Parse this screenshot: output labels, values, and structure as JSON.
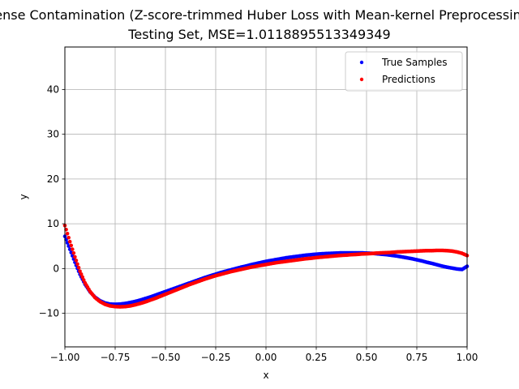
{
  "chart_data": {
    "type": "scatter",
    "title": "Dense Contamination (Z-score-trimmed Huber Loss with Mean-kernel Preprocessing)",
    "subtitle": "Testing Set, MSE=1.0118895513349349",
    "xlabel": "x",
    "ylabel": "y",
    "xlim": [
      -1.0,
      1.0
    ],
    "ylim": [
      -17.5,
      49.5
    ],
    "xticks": [
      -1.0,
      -0.75,
      -0.5,
      -0.25,
      0.0,
      0.25,
      0.5,
      0.75,
      1.0
    ],
    "xtick_labels": [
      "−1.00",
      "−0.75",
      "−0.50",
      "−0.25",
      "0.00",
      "0.25",
      "0.50",
      "0.75",
      "1.00"
    ],
    "yticks": [
      -10,
      0,
      10,
      20,
      30,
      40
    ],
    "ytick_labels": [
      "−10",
      "0",
      "10",
      "20",
      "30",
      "40"
    ],
    "grid": true,
    "legend_position": "upper right",
    "series": [
      {
        "name": "True Samples",
        "color": "#0000ff",
        "x": [
          -1.0,
          -0.975,
          -0.95,
          -0.925,
          -0.9,
          -0.875,
          -0.85,
          -0.825,
          -0.8,
          -0.775,
          -0.75,
          -0.725,
          -0.7,
          -0.675,
          -0.65,
          -0.625,
          -0.6,
          -0.575,
          -0.55,
          -0.525,
          -0.5,
          -0.475,
          -0.45,
          -0.425,
          -0.4,
          -0.375,
          -0.35,
          -0.325,
          -0.3,
          -0.275,
          -0.25,
          -0.225,
          -0.2,
          -0.175,
          -0.15,
          -0.125,
          -0.1,
          -0.075,
          -0.05,
          -0.025,
          0.0,
          0.025,
          0.05,
          0.075,
          0.1,
          0.125,
          0.15,
          0.175,
          0.2,
          0.225,
          0.25,
          0.275,
          0.3,
          0.325,
          0.35,
          0.375,
          0.4,
          0.425,
          0.45,
          0.475,
          0.5,
          0.525,
          0.55,
          0.575,
          0.6,
          0.625,
          0.65,
          0.675,
          0.7,
          0.725,
          0.75,
          0.775,
          0.8,
          0.825,
          0.85,
          0.875,
          0.9,
          0.925,
          0.95,
          0.975,
          1.0
        ],
        "y": [
          7.2,
          4.3,
          1.4,
          -1.3,
          -3.5,
          -5.2,
          -6.4,
          -7.2,
          -7.7,
          -7.95,
          -8.0,
          -7.95,
          -7.8,
          -7.6,
          -7.35,
          -7.05,
          -6.7,
          -6.35,
          -5.95,
          -5.55,
          -5.15,
          -4.75,
          -4.35,
          -3.95,
          -3.55,
          -3.15,
          -2.75,
          -2.35,
          -1.95,
          -1.6,
          -1.25,
          -0.9,
          -0.6,
          -0.3,
          0.0,
          0.3,
          0.55,
          0.85,
          1.1,
          1.35,
          1.6,
          1.8,
          2.0,
          2.2,
          2.4,
          2.55,
          2.7,
          2.85,
          3.0,
          3.1,
          3.2,
          3.3,
          3.35,
          3.4,
          3.45,
          3.5,
          3.5,
          3.5,
          3.5,
          3.5,
          3.45,
          3.4,
          3.3,
          3.2,
          3.1,
          2.95,
          2.8,
          2.6,
          2.4,
          2.2,
          1.95,
          1.7,
          1.4,
          1.15,
          0.85,
          0.55,
          0.3,
          0.1,
          -0.1,
          -0.2,
          0.5
        ]
      },
      {
        "name": "Predictions",
        "color": "#ff0000",
        "x": [
          -1.0,
          -0.975,
          -0.95,
          -0.925,
          -0.9,
          -0.875,
          -0.85,
          -0.825,
          -0.8,
          -0.775,
          -0.75,
          -0.725,
          -0.7,
          -0.675,
          -0.65,
          -0.625,
          -0.6,
          -0.575,
          -0.55,
          -0.525,
          -0.5,
          -0.475,
          -0.45,
          -0.425,
          -0.4,
          -0.375,
          -0.35,
          -0.325,
          -0.3,
          -0.275,
          -0.25,
          -0.225,
          -0.2,
          -0.175,
          -0.15,
          -0.125,
          -0.1,
          -0.075,
          -0.05,
          -0.025,
          0.0,
          0.025,
          0.05,
          0.075,
          0.1,
          0.125,
          0.15,
          0.175,
          0.2,
          0.225,
          0.25,
          0.275,
          0.3,
          0.325,
          0.35,
          0.375,
          0.4,
          0.425,
          0.45,
          0.475,
          0.5,
          0.525,
          0.55,
          0.575,
          0.6,
          0.625,
          0.65,
          0.675,
          0.7,
          0.725,
          0.75,
          0.775,
          0.8,
          0.825,
          0.85,
          0.875,
          0.9,
          0.925,
          0.95,
          0.975,
          1.0
        ],
        "y": [
          9.6,
          6.0,
          2.6,
          -0.6,
          -3.2,
          -5.1,
          -6.5,
          -7.4,
          -8.0,
          -8.35,
          -8.5,
          -8.55,
          -8.5,
          -8.35,
          -8.1,
          -7.8,
          -7.45,
          -7.05,
          -6.65,
          -6.2,
          -5.75,
          -5.3,
          -4.85,
          -4.4,
          -3.95,
          -3.5,
          -3.1,
          -2.7,
          -2.3,
          -1.95,
          -1.6,
          -1.3,
          -1.0,
          -0.7,
          -0.45,
          -0.2,
          0.05,
          0.3,
          0.5,
          0.7,
          0.9,
          1.1,
          1.3,
          1.45,
          1.6,
          1.75,
          1.9,
          2.05,
          2.2,
          2.3,
          2.45,
          2.55,
          2.65,
          2.75,
          2.85,
          2.95,
          3.0,
          3.1,
          3.15,
          3.25,
          3.3,
          3.35,
          3.45,
          3.5,
          3.55,
          3.6,
          3.7,
          3.75,
          3.8,
          3.85,
          3.9,
          3.95,
          4.0,
          4.0,
          4.05,
          4.05,
          4.0,
          3.9,
          3.7,
          3.4,
          2.9
        ]
      }
    ]
  }
}
